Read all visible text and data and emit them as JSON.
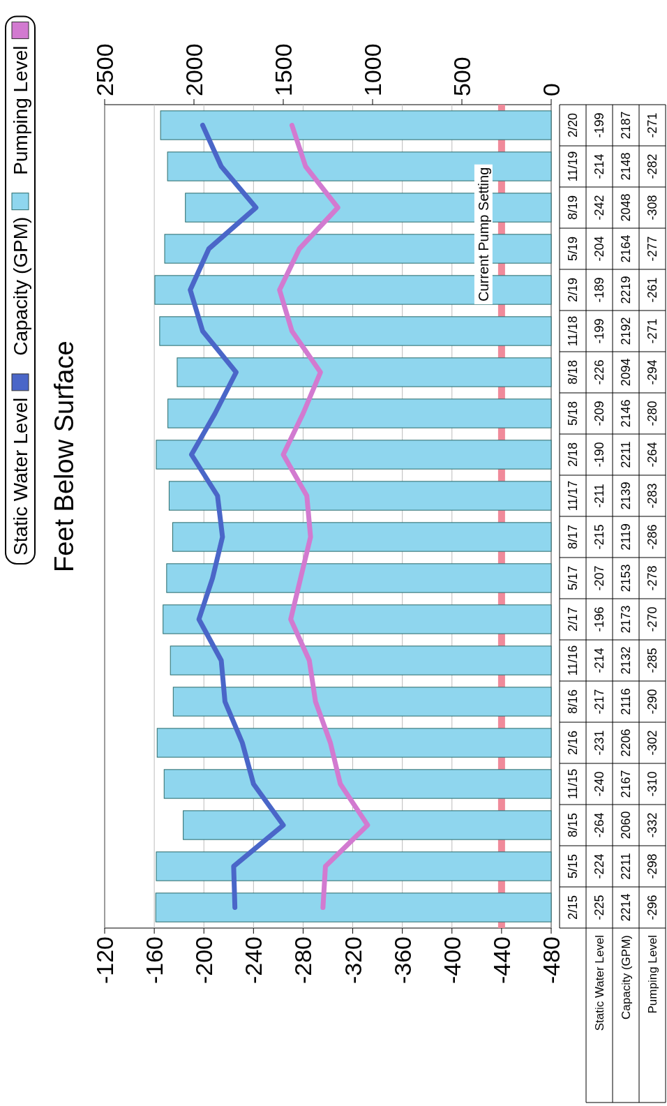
{
  "chart_data": {
    "type": "bar",
    "orientation": "horizontal",
    "title": "Feet Below Surface",
    "categories": [
      "2/20",
      "11/19",
      "8/19",
      "5/19",
      "2/19",
      "11/18",
      "8/18",
      "5/18",
      "2/18",
      "11/17",
      "8/17",
      "5/17",
      "2/17",
      "11/16",
      "8/16",
      "2/16",
      "11/15",
      "8/15",
      "5/15",
      "2/15"
    ],
    "series": [
      {
        "name": "Static Water Level",
        "type": "line",
        "color": "#4a66c8",
        "values": [
          -199,
          -214,
          -242,
          -204,
          -189,
          -199,
          -226,
          -209,
          -190,
          -211,
          -215,
          -207,
          -196,
          -214,
          -217,
          -231,
          -240,
          -264,
          -224,
          -225
        ]
      },
      {
        "name": "Capacity (GPM)",
        "axis": "x2",
        "color": "#8fd6ee",
        "values": [
          2187,
          2148,
          2048,
          2164,
          2219,
          2192,
          2094,
          2146,
          2211,
          2139,
          2119,
          2153,
          2173,
          2132,
          2116,
          2206,
          2167,
          2060,
          2211,
          2214
        ]
      },
      {
        "name": "Pumping Level",
        "type": "line",
        "color": "#d27ad0",
        "values": [
          -271,
          -282,
          -308,
          -277,
          -261,
          -271,
          -294,
          -280,
          -264,
          -283,
          -286,
          -278,
          -270,
          -285,
          -290,
          -302,
          -310,
          -332,
          -298,
          -296
        ]
      }
    ],
    "xlim": [
      -120,
      -480
    ],
    "xticks": [
      -120,
      -160,
      -200,
      -240,
      -280,
      -320,
      -360,
      -400,
      -440,
      -480
    ],
    "x2lim": [
      2500,
      0
    ],
    "x2ticks": [
      2500,
      2000,
      1500,
      1000,
      500,
      0
    ],
    "ref_lines": [
      {
        "axis": "x",
        "value": -440,
        "label": "Current Pump Setting",
        "color": "#f08a9a"
      }
    ],
    "grid": "x",
    "legend": "left",
    "data_labels": true
  }
}
